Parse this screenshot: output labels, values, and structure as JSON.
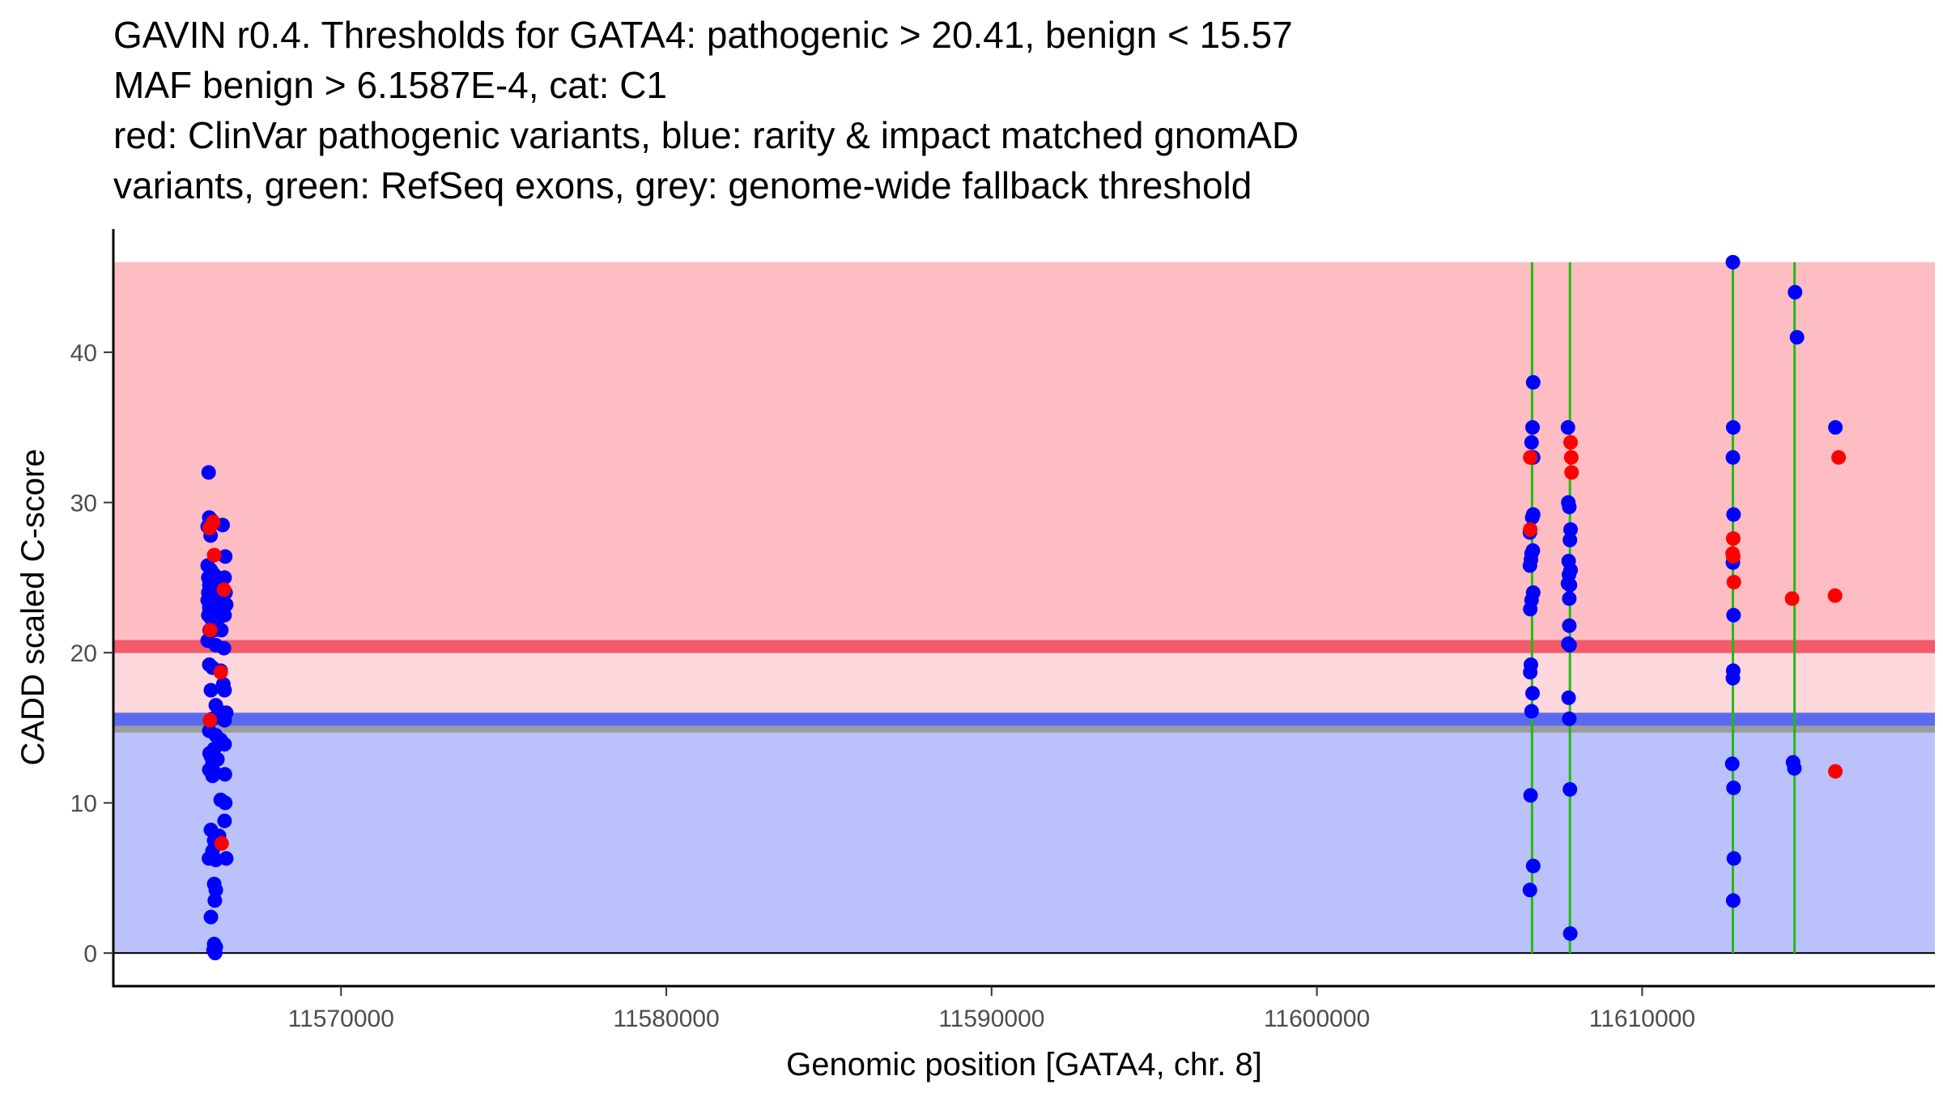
{
  "chart_data": {
    "type": "scatter",
    "title_lines": [
      "GAVIN r0.4. Thresholds for GATA4: pathogenic > 20.41, benign < 15.57",
      "MAF benign > 6.1587E-4, cat: C1",
      "red: ClinVar pathogenic variants, blue: rarity & impact matched gnomAD",
      "variants, green: RefSeq exons, grey: genome-wide fallback threshold"
    ],
    "xlabel": "Genomic position [GATA4, chr. 8]",
    "ylabel": "CADD scaled C-score",
    "xlim": [
      11563000,
      11619000
    ],
    "ylim": [
      -2.2,
      48.2
    ],
    "x_ticks": [
      11570000,
      11580000,
      11590000,
      11600000,
      11610000
    ],
    "y_ticks": [
      0,
      10,
      20,
      30,
      40
    ],
    "thresholds": {
      "pathogenic": 20.41,
      "benign": 15.57,
      "fallback": 15.0,
      "max_score": 46
    },
    "colors": {
      "pathogenic_region": "#fdbdc2",
      "middle_region": "#fdd7dc",
      "benign_region": "#bbc1fb",
      "pathogenic_line": "#f45a6a",
      "benign_line": "#5b6bf0",
      "fallback_line": "#9d9d9d",
      "exon": "#22bb11",
      "clinvar": "#ff0000",
      "gnomad": "#0000ff"
    },
    "exons": [
      {
        "start": 11606580,
        "end": 11606650
      },
      {
        "start": 11607760,
        "end": 11607800
      },
      {
        "start": 11612780,
        "end": 11612800
      },
      {
        "start": 11614660,
        "end": 11614710
      }
    ],
    "series": [
      {
        "name": "gnomAD",
        "color": "#0000ff",
        "points": [
          [
            11565930,
            32
          ],
          [
            11565950,
            29
          ],
          [
            11566030,
            28.8
          ],
          [
            11565900,
            28.4
          ],
          [
            11565990,
            27.8
          ],
          [
            11566360,
            28.5
          ],
          [
            11566440,
            26.4
          ],
          [
            11565900,
            25.8
          ],
          [
            11566000,
            25.5
          ],
          [
            11566100,
            25.2
          ],
          [
            11565920,
            25
          ],
          [
            11566200,
            25
          ],
          [
            11566420,
            25
          ],
          [
            11565950,
            24.5
          ],
          [
            11566300,
            24.6
          ],
          [
            11565920,
            24
          ],
          [
            11566000,
            24.2
          ],
          [
            11566150,
            24
          ],
          [
            11566450,
            24
          ],
          [
            11565900,
            23.5
          ],
          [
            11566050,
            23.5
          ],
          [
            11566250,
            23.4
          ],
          [
            11566470,
            23.2
          ],
          [
            11565950,
            23
          ],
          [
            11566100,
            22.9
          ],
          [
            11566300,
            22.8
          ],
          [
            11565920,
            22.5
          ],
          [
            11566000,
            22.3
          ],
          [
            11566200,
            22.2
          ],
          [
            11566420,
            22.5
          ],
          [
            11565960,
            21.5
          ],
          [
            11566100,
            21.5
          ],
          [
            11566320,
            21.5
          ],
          [
            11565900,
            20.8
          ],
          [
            11566150,
            20.5
          ],
          [
            11566400,
            20.3
          ],
          [
            11565950,
            19.2
          ],
          [
            11566050,
            19
          ],
          [
            11566300,
            18.8
          ],
          [
            11566380,
            17.9
          ],
          [
            11566420,
            17.5
          ],
          [
            11566000,
            17.5
          ],
          [
            11566150,
            16.5
          ],
          [
            11566050,
            15.6
          ],
          [
            11566380,
            16
          ],
          [
            11566420,
            15.5
          ],
          [
            11566470,
            16
          ],
          [
            11565950,
            14.8
          ],
          [
            11566150,
            14.5
          ],
          [
            11566300,
            14.2
          ],
          [
            11566420,
            13.9
          ],
          [
            11566100,
            13.6
          ],
          [
            11565960,
            13.3
          ],
          [
            11566000,
            13.1
          ],
          [
            11566200,
            12.9
          ],
          [
            11566050,
            12.6
          ],
          [
            11565950,
            12.2
          ],
          [
            11566120,
            12
          ],
          [
            11566430,
            11.9
          ],
          [
            11566050,
            11.8
          ],
          [
            11566300,
            10.2
          ],
          [
            11566440,
            10
          ],
          [
            11566420,
            8.8
          ],
          [
            11566000,
            8.2
          ],
          [
            11566250,
            7.8
          ],
          [
            11566100,
            7.5
          ],
          [
            11566050,
            6.8
          ],
          [
            11565940,
            6.3
          ],
          [
            11566150,
            6.2
          ],
          [
            11566470,
            6.3
          ],
          [
            11566100,
            4.6
          ],
          [
            11566150,
            4.2
          ],
          [
            11566120,
            3.5
          ],
          [
            11566000,
            2.4
          ],
          [
            11566100,
            0.6
          ],
          [
            11566150,
            0.4
          ],
          [
            11566080,
            0.2
          ],
          [
            11566130,
            0
          ],
          [
            11606650,
            38
          ],
          [
            11606630,
            35
          ],
          [
            11606600,
            34
          ],
          [
            11606650,
            33
          ],
          [
            11606650,
            29.2
          ],
          [
            11606620,
            29
          ],
          [
            11606550,
            28
          ],
          [
            11606640,
            26.8
          ],
          [
            11606600,
            26.6
          ],
          [
            11606580,
            26.2
          ],
          [
            11606550,
            25.8
          ],
          [
            11606650,
            24
          ],
          [
            11606600,
            23.5
          ],
          [
            11606560,
            22.9
          ],
          [
            11606580,
            19.2
          ],
          [
            11606560,
            18.7
          ],
          [
            11606630,
            17.3
          ],
          [
            11606600,
            16.1
          ],
          [
            11606570,
            10.5
          ],
          [
            11606650,
            5.8
          ],
          [
            11606550,
            4.2
          ],
          [
            11607720,
            35
          ],
          [
            11607730,
            30
          ],
          [
            11607760,
            29.7
          ],
          [
            11607800,
            28.2
          ],
          [
            11607780,
            27.5
          ],
          [
            11607740,
            26.1
          ],
          [
            11607800,
            25.5
          ],
          [
            11607750,
            25.2
          ],
          [
            11607720,
            24.6
          ],
          [
            11607780,
            24.5
          ],
          [
            11607760,
            23.6
          ],
          [
            11607760,
            21.8
          ],
          [
            11607770,
            20.5
          ],
          [
            11607730,
            20.6
          ],
          [
            11607740,
            17
          ],
          [
            11607760,
            15.6
          ],
          [
            11607780,
            10.9
          ],
          [
            11607790,
            1.3
          ],
          [
            11612790,
            46
          ],
          [
            11612800,
            35
          ],
          [
            11612790,
            33
          ],
          [
            11612810,
            29.2
          ],
          [
            11612790,
            26
          ],
          [
            11612810,
            22.5
          ],
          [
            11612800,
            18.8
          ],
          [
            11612790,
            18.3
          ],
          [
            11612770,
            12.6
          ],
          [
            11612810,
            11
          ],
          [
            11612820,
            6.3
          ],
          [
            11612800,
            3.5
          ],
          [
            11614700,
            44
          ],
          [
            11614760,
            41
          ],
          [
            11614640,
            12.7
          ],
          [
            11614680,
            12.3
          ],
          [
            11615940,
            35
          ]
        ]
      },
      {
        "name": "ClinVar",
        "color": "#ff0000",
        "points": [
          [
            11565960,
            28.3
          ],
          [
            11566070,
            28.7
          ],
          [
            11566100,
            26.5
          ],
          [
            11566400,
            24.2
          ],
          [
            11565980,
            21.5
          ],
          [
            11566300,
            18.7
          ],
          [
            11565970,
            15.5
          ],
          [
            11566330,
            7.3
          ],
          [
            11606560,
            33
          ],
          [
            11606560,
            28.2
          ],
          [
            11607800,
            34
          ],
          [
            11607820,
            33
          ],
          [
            11607830,
            32
          ],
          [
            11612800,
            27.6
          ],
          [
            11612780,
            26.6
          ],
          [
            11612800,
            26.4
          ],
          [
            11612820,
            24.7
          ],
          [
            11614610,
            23.6
          ],
          [
            11616040,
            33
          ],
          [
            11615930,
            23.8
          ],
          [
            11615940,
            12.1
          ]
        ]
      }
    ]
  }
}
